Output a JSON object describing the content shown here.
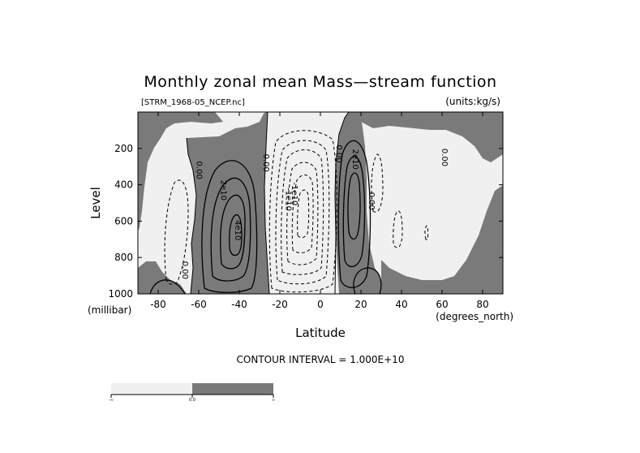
{
  "chart_data": {
    "type": "contour",
    "title": "Monthly zonal mean Mass—stream function",
    "file_label": "[STRM_1968-05_NCEP.nc]",
    "units_label": "(units:kg/s)",
    "xlabel": "Latitude",
    "xunits": "(degrees_north)",
    "ylabel": "Level",
    "yunits": "(millibar)",
    "xlim": [
      -90,
      90
    ],
    "ylim": [
      1000,
      0
    ],
    "xticks": [
      -80,
      -60,
      -40,
      -20,
      0,
      20,
      40,
      60,
      80
    ],
    "yticks": [
      200,
      400,
      600,
      800,
      1000
    ],
    "contour_interval_text": "CONTOUR INTERVAL = 1.000E+10",
    "contour_labels": [
      {
        "text": "0.00",
        "x": -61,
        "y": 320
      },
      {
        "text": "2e10",
        "x": -49,
        "y": 430
      },
      {
        "text": "4e10",
        "x": -42,
        "y": 650
      },
      {
        "text": "0.00",
        "x": -28,
        "y": 280
      },
      {
        "text": "-1e10",
        "x": -17,
        "y": 480
      },
      {
        "text": "-1e10",
        "x": -14,
        "y": 450
      },
      {
        "text": "0.00",
        "x": 8,
        "y": 230
      },
      {
        "text": "2e10",
        "x": 16,
        "y": 260
      },
      {
        "text": "0.00",
        "x": 24,
        "y": 490
      },
      {
        "text": "0.00",
        "x": 60,
        "y": 250
      },
      {
        "text": "0.00",
        "x": 90,
        "y": 170
      },
      {
        "text": "0.00",
        "x": -68,
        "y": 870
      }
    ],
    "fill_colors": {
      "negative": "#f0f0f0",
      "positive": "#7a7a7a"
    },
    "colorbar": {
      "labels": [
        "-∞",
        "0.0",
        "∞"
      ],
      "colors": [
        "#f0f0f0",
        "#7a7a7a"
      ]
    }
  }
}
